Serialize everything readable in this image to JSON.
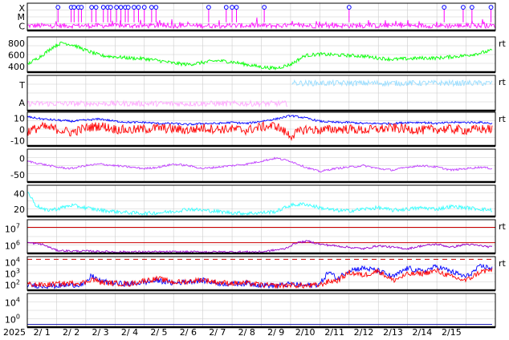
{
  "chart_data": {
    "type": "line",
    "year_label": "2025",
    "x_ticks": [
      "2/ 1",
      "2/ 2",
      "2/ 3",
      "2/ 4",
      "2/ 5",
      "2/ 6",
      "2/ 7",
      "2/ 8",
      "2/ 9",
      "2/10",
      "2/11",
      "2/12",
      "2/13",
      "2/14",
      "2/15"
    ],
    "colors": {
      "magenta": "#ff00ff",
      "green": "#00ff00",
      "pink": "#ffaaff",
      "lightblue": "#99ddff",
      "blue": "#0000ff",
      "red": "#ff0000",
      "purple": "#c040ff",
      "cyan": "#33ffff",
      "darkpurple": "#9900cc",
      "darkred": "#cc0000",
      "navy": "#0000aa"
    },
    "panels": [
      {
        "id": "xray",
        "tick_labels": [
          "X",
          "M",
          "C"
        ],
        "ylim": [
          0,
          3
        ],
        "right_label": "",
        "markers_day": [
          1.05,
          1.5,
          1.6,
          1.75,
          1.85,
          2.2,
          2.35,
          2.6,
          2.75,
          2.85,
          3.05,
          3.2,
          3.35,
          3.45,
          3.65,
          3.8,
          4.0,
          4.25,
          4.4,
          6.2,
          6.8,
          7.0,
          7.15,
          8.1,
          11.0,
          14.25,
          14.9,
          15.2,
          15.85
        ]
      },
      {
        "id": "wind_speed",
        "tick_labels": [
          "800",
          "600",
          "400"
        ],
        "ylim": [
          300,
          850
        ],
        "right_label": "rt",
        "series": [
          {
            "color": "green",
            "anchors_day": [
              0,
              0.5,
              0.9,
              1.2,
              1.6,
              2.0,
              2.5,
              3.0,
              3.5,
              4.0,
              4.5,
              5.0,
              5.5,
              6.0,
              6.5,
              7.0,
              7.5,
              8.0,
              8.5,
              9.0,
              9.5,
              10.0,
              10.5,
              11.0,
              11.5,
              12.0,
              12.5,
              13.0,
              13.5,
              14.0,
              14.5,
              15.0,
              15.5,
              15.9
            ],
            "anchors_val": [
              420,
              560,
              700,
              760,
              720,
              640,
              560,
              540,
              520,
              510,
              480,
              440,
              420,
              450,
              480,
              460,
              420,
              380,
              360,
              420,
              560,
              580,
              570,
              560,
              550,
              520,
              500,
              510,
              520,
              520,
              540,
              560,
              600,
              640
            ]
          }
        ]
      },
      {
        "id": "xray_class_bg",
        "tick_labels": [
          "T",
          "A"
        ],
        "ylim": [
          0,
          1
        ],
        "right_label": "rt",
        "series": [
          {
            "color": "pink",
            "anchors_day": [
              0,
              8.9
            ],
            "anchors_val": [
              0.2,
              0.2
            ]
          },
          {
            "color": "lightblue",
            "anchors_day": [
              9.05,
              15.9
            ],
            "anchors_val": [
              0.78,
              0.78
            ]
          }
        ]
      },
      {
        "id": "bz_bt",
        "tick_labels": [
          "10",
          "0",
          "-10"
        ],
        "ylim": [
          -15,
          15
        ],
        "right_label": "rt",
        "series": [
          {
            "color": "blue",
            "anchors_day": [
              0,
              0.5,
              1.0,
              1.5,
              2.0,
              2.5,
              3.0,
              3.5,
              4.0,
              4.5,
              5.0,
              5.5,
              6.0,
              6.5,
              7.0,
              7.5,
              8.0,
              8.5,
              9.0,
              9.5,
              10.0,
              10.5,
              11.0,
              11.5,
              12.0,
              12.5,
              13.0,
              13.5,
              14.0,
              14.5,
              15.0,
              15.5,
              15.9
            ],
            "anchors_val": [
              11,
              9,
              8,
              7,
              8,
              9,
              7,
              6,
              6,
              5,
              5,
              4,
              5,
              5,
              6,
              5,
              7,
              9,
              12,
              10,
              7,
              6,
              6,
              5,
              5,
              5,
              6,
              6,
              5,
              6,
              6,
              6,
              5
            ]
          },
          {
            "color": "red",
            "anchors_day": [
              0,
              0.5,
              1.0,
              1.5,
              2.0,
              2.5,
              3.0,
              3.5,
              4.0,
              4.5,
              5.0,
              5.5,
              6.0,
              6.5,
              7.0,
              7.5,
              8.0,
              8.5,
              9.0,
              9.5,
              10.0,
              10.5,
              11.0,
              11.5,
              12.0,
              12.5,
              13.0,
              13.5,
              14.0,
              14.5,
              15.0,
              15.5,
              15.9
            ],
            "anchors_val": [
              -2,
              2,
              0,
              -3,
              1,
              3,
              0,
              -1,
              0,
              1,
              0,
              -1,
              1,
              0,
              0,
              -1,
              2,
              3,
              -6,
              0,
              -1,
              0,
              0,
              -1,
              0,
              1,
              0,
              -1,
              0,
              0,
              -1,
              0,
              0
            ]
          }
        ]
      },
      {
        "id": "hp",
        "tick_labels": [
          "0",
          "-50"
        ],
        "ylim": [
          -90,
          20
        ],
        "right_label": "",
        "series": [
          {
            "color": "purple",
            "anchors_day": [
              0,
              0.5,
              1.0,
              1.5,
              2.0,
              2.5,
              3.0,
              3.5,
              4.0,
              4.5,
              5.0,
              5.5,
              6.0,
              6.5,
              7.0,
              7.5,
              8.0,
              8.5,
              9.0,
              9.5,
              10.0,
              10.5,
              11.0,
              11.5,
              12.0,
              12.5,
              13.0,
              13.5,
              14.0,
              14.5,
              15.0,
              15.5,
              15.9
            ],
            "anchors_val": [
              -20,
              -30,
              -40,
              -45,
              -35,
              -30,
              -35,
              -40,
              -45,
              -40,
              -30,
              -35,
              -45,
              -40,
              -35,
              -30,
              -20,
              -10,
              -20,
              -40,
              -55,
              -45,
              -40,
              -35,
              -45,
              -50,
              -40,
              -35,
              -40,
              -50,
              -45,
              -40,
              -45
            ]
          }
        ]
      },
      {
        "id": "kp",
        "tick_labels": [
          "40",
          "20"
        ],
        "ylim": [
          0,
          50
        ],
        "right_label": "",
        "series": [
          {
            "color": "cyan",
            "anchors_day": [
              0,
              0.3,
              0.6,
              1.0,
              1.5,
              2.0,
              2.5,
              3.0,
              3.5,
              4.0,
              4.5,
              5.0,
              5.5,
              6.0,
              6.5,
              7.0,
              7.5,
              8.0,
              8.5,
              9.0,
              9.5,
              10.0,
              10.5,
              11.0,
              11.5,
              12.0,
              12.5,
              13.0,
              13.5,
              14.0,
              14.5,
              15.0,
              15.5,
              15.9
            ],
            "anchors_val": [
              40,
              18,
              10,
              12,
              18,
              14,
              10,
              8,
              6,
              5,
              6,
              8,
              12,
              10,
              8,
              6,
              5,
              6,
              8,
              18,
              20,
              14,
              10,
              9,
              12,
              14,
              10,
              12,
              14,
              12,
              16,
              14,
              12,
              10
            ]
          }
        ]
      },
      {
        "id": "proton",
        "tick_labels": [
          "10",
          "10"
        ],
        "tick_exponents": [
          "7",
          "6"
        ],
        "ylim": [
          5.3,
          7.5
        ],
        "right_label": "rt",
        "threshold_lines": [
          7.0,
          6.0
        ],
        "series": [
          {
            "color": "darkpurple",
            "anchors_day": [
              0,
              0.5,
              1.0,
              1.5,
              2.0,
              3.0,
              4.0,
              5.0,
              6.0,
              7.0,
              8.0,
              8.8,
              9.2,
              9.6,
              10.0,
              10.5,
              11.0,
              11.5,
              12.0,
              12.5,
              13.0,
              13.5,
              14.0,
              14.5,
              15.0,
              15.5,
              15.9
            ],
            "anchors_val": [
              6.0,
              5.9,
              5.5,
              5.45,
              5.45,
              5.4,
              5.4,
              5.4,
              5.4,
              5.4,
              5.4,
              5.6,
              6.0,
              6.1,
              5.9,
              5.8,
              5.7,
              5.6,
              5.8,
              5.7,
              5.6,
              5.8,
              5.9,
              5.7,
              5.9,
              5.8,
              5.7
            ]
          }
        ]
      },
      {
        "id": "electron",
        "tick_labels": [
          "10",
          "10",
          "10"
        ],
        "tick_exponents": [
          "4",
          "3",
          "2"
        ],
        "ylim": [
          0.5,
          4.3
        ],
        "right_label": "rt",
        "threshold_lines": [
          4.0
        ],
        "series": [
          {
            "color": "blue",
            "anchors_day": [
              0,
              0.5,
              1.0,
              1.5,
              2.0,
              2.2,
              2.5,
              3.0,
              3.5,
              4.0,
              4.5,
              5.0,
              5.5,
              6.0,
              6.5,
              7.0,
              7.5,
              8.0,
              8.5,
              9.0,
              9.5,
              10.0,
              10.3,
              10.6,
              11.0,
              11.5,
              12.0,
              12.5,
              13.0,
              13.5,
              14.0,
              14.5,
              15.0,
              15.5,
              15.9
            ],
            "anchors_val": [
              1.1,
              1.0,
              1.0,
              1.1,
              1.2,
              2.2,
              1.5,
              1.3,
              1.2,
              1.4,
              1.6,
              1.3,
              1.5,
              1.6,
              1.3,
              1.2,
              1.3,
              1.1,
              1.0,
              1.2,
              1.0,
              1.2,
              2.6,
              1.8,
              2.8,
              3.0,
              2.7,
              2.0,
              3.0,
              2.6,
              3.2,
              2.6,
              2.0,
              3.2,
              3.0
            ]
          },
          {
            "color": "red",
            "anchors_day": [
              0,
              0.5,
              1.0,
              1.5,
              2.0,
              2.2,
              2.5,
              3.0,
              3.5,
              4.0,
              4.5,
              5.0,
              5.5,
              6.0,
              6.5,
              7.0,
              7.5,
              8.0,
              8.5,
              9.0,
              9.5,
              10.0,
              10.3,
              10.6,
              11.0,
              11.5,
              12.0,
              12.5,
              13.0,
              13.5,
              14.0,
              14.5,
              15.0,
              15.5,
              15.9
            ],
            "anchors_val": [
              1.2,
              1.1,
              1.2,
              1.3,
              1.4,
              1.8,
              1.4,
              1.3,
              1.2,
              1.6,
              1.8,
              1.4,
              1.5,
              1.7,
              1.4,
              1.3,
              1.3,
              1.1,
              1.0,
              1.1,
              1.0,
              1.1,
              1.5,
              1.6,
              2.5,
              2.2,
              2.7,
              1.6,
              2.3,
              2.4,
              2.7,
              2.0,
              1.6,
              2.6,
              2.8
            ]
          }
        ]
      },
      {
        "id": "aux",
        "tick_labels": [
          "10",
          "10"
        ],
        "tick_exponents": [
          "4",
          "0"
        ],
        "ylim": [
          -0.5,
          4.5
        ],
        "right_label": "",
        "series": [
          {
            "color": "navy",
            "anchors_day": [
              0,
              15.9
            ],
            "anchors_val": [
              -0.1,
              -0.1
            ]
          }
        ]
      }
    ]
  }
}
